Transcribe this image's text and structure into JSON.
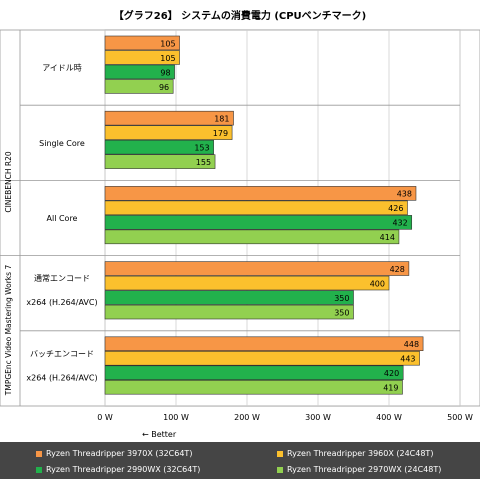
{
  "chart_data": {
    "type": "bar",
    "orientation": "horizontal",
    "title": "【グラフ26】 システムの消費電力 (CPUベンチマーク)",
    "xlim": [
      0,
      500
    ],
    "xticks": [
      0,
      100,
      200,
      300,
      400,
      500
    ],
    "xtick_labels": [
      "0 W",
      "100 W",
      "200 W",
      "300 W",
      "400 W",
      "500 W"
    ],
    "direction_note": "← Better",
    "groups": [
      {
        "label": "CINEBENCH R20"
      },
      {
        "label": "TMPGEnc Video Mastering Works 7"
      }
    ],
    "categories": [
      {
        "line1": "アイドル時",
        "line2": "",
        "values": [
          105,
          105,
          98,
          96
        ]
      },
      {
        "line1": "Single Core",
        "line2": "",
        "values": [
          181,
          179,
          153,
          155
        ]
      },
      {
        "line1": "All Core",
        "line2": "",
        "values": [
          438,
          426,
          432,
          414
        ]
      },
      {
        "line1": "通常エンコード",
        "line2": "x264 (H.264/AVC)",
        "values": [
          428,
          400,
          350,
          350
        ]
      },
      {
        "line1": "バッチエンコード",
        "line2": "x264 (H.264/AVC)",
        "values": [
          448,
          443,
          420,
          419
        ]
      }
    ],
    "series": [
      {
        "name": "Ryzen Threadripper 3970X (32C64T)",
        "color": "#f79646"
      },
      {
        "name": "Ryzen Threadripper 3960X (24C48T)",
        "color": "#fbc02d"
      },
      {
        "name": "Ryzen Threadripper 2990WX (32C64T)",
        "color": "#22b14c"
      },
      {
        "name": "Ryzen Threadripper 2970WX (24C48T)",
        "color": "#92d050"
      }
    ]
  }
}
